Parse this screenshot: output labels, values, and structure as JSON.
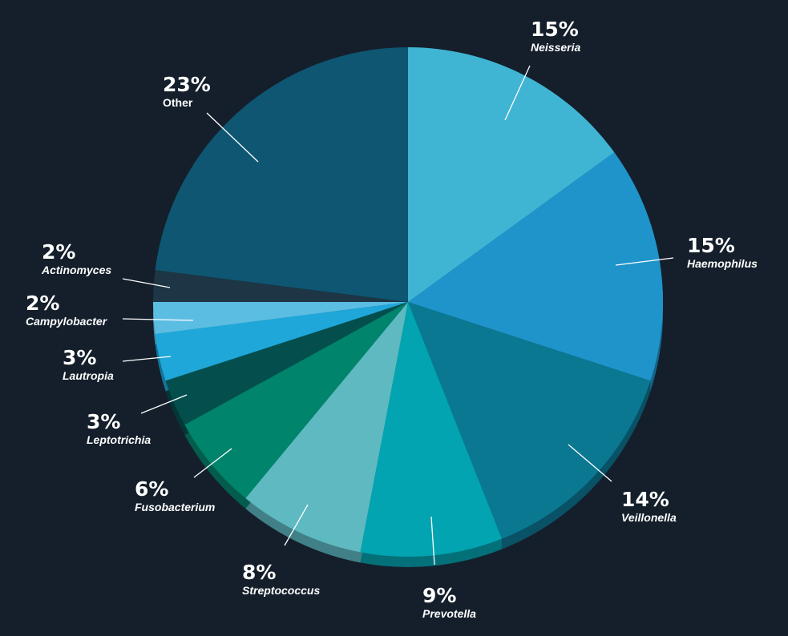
{
  "chart_data": {
    "type": "pie",
    "categories": [
      "Neisseria",
      "Haemophilus",
      "Veillonella",
      "Prevotella",
      "Streptococcus",
      "Fusobacterium",
      "Leptotrichia",
      "Lautropia",
      "Campylobacter",
      "Actinomyces",
      "Other"
    ],
    "values": [
      15,
      15,
      14,
      9,
      8,
      6,
      3,
      3,
      2,
      2,
      23
    ],
    "labels": [
      "15%",
      "15%",
      "14%",
      "9%",
      "8%",
      "6%",
      "3%",
      "3%",
      "2%",
      "2%",
      "23%"
    ],
    "colors": [
      "#40b5d3",
      "#1f94cb",
      "#0b7892",
      "#01a4b0",
      "#5fb9c1",
      "#00846c",
      "#044f4d",
      "#1fa7d9",
      "#5bbde2",
      "#1d3544",
      "#0e5672"
    ],
    "depth_colors": [
      "#2a7f95",
      "#17658c",
      "#0a5266",
      "#047079",
      "#418086",
      "#045d4d",
      "#043836",
      "#15749a",
      "#4084a0",
      "#142633",
      "#0a3b4f"
    ]
  }
}
